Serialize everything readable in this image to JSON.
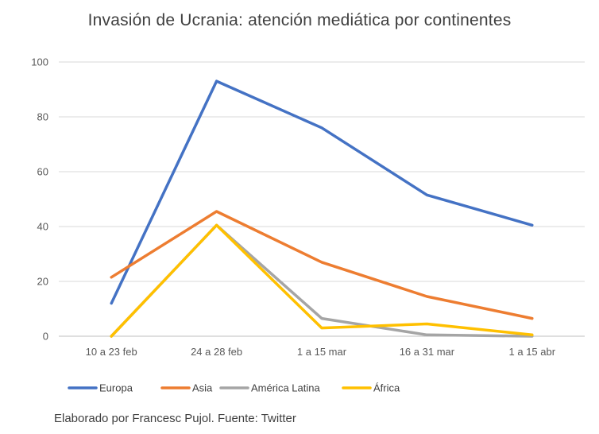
{
  "chart_data": {
    "type": "line",
    "title": "Invasión de Ucrania: atención mediática por continentes",
    "categories": [
      "10 a 23 feb",
      "24 a 28 feb",
      "1 a 15 mar",
      "16 a 31 mar",
      "1 a 15 abr"
    ],
    "series": [
      {
        "name": "Europa",
        "color": "#4472C4",
        "values": [
          12,
          93,
          76,
          51.5,
          40.5
        ]
      },
      {
        "name": "Asia",
        "color": "#ED7D31",
        "values": [
          21.5,
          45.5,
          27,
          14.5,
          6.5
        ]
      },
      {
        "name": "América Latina",
        "color": "#A5A5A5",
        "values": [
          0,
          40.5,
          6.5,
          0.5,
          0
        ]
      },
      {
        "name": "África",
        "color": "#FFC000",
        "values": [
          0,
          40.5,
          3,
          4.5,
          0.5
        ]
      }
    ],
    "ylim": [
      0,
      100
    ],
    "yticks": [
      0,
      20,
      40,
      60,
      80,
      100
    ],
    "grid": true,
    "legend": "bottom"
  },
  "footer": {
    "source": "Elaborado por Francesc Pujol. Fuente: Twitter"
  }
}
